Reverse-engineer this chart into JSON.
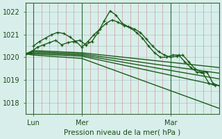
{
  "background_color": "#d8eeea",
  "grid_color_v": "#cc8888",
  "grid_color_h": "#aacccc",
  "line_color": "#1a5c1a",
  "ylabel": "Pression niveau de la mer( hPa )",
  "xlim": [
    0,
    96
  ],
  "ylim": [
    1017.5,
    1022.4
  ],
  "yticks": [
    1018,
    1019,
    1020,
    1021,
    1022
  ],
  "xtick_labels": [
    "Lun",
    "Mer",
    "Mar"
  ],
  "xtick_positions": [
    4,
    28,
    72
  ],
  "vlines": [
    4,
    28,
    72
  ],
  "series": [
    {
      "x": [
        0,
        3,
        6,
        9,
        12,
        15,
        18,
        21,
        24,
        27,
        30,
        33,
        36,
        39,
        42,
        45,
        48,
        51,
        54,
        57,
        60,
        63,
        66,
        69,
        72,
        75,
        78,
        81,
        84,
        87,
        90,
        93,
        96
      ],
      "y": [
        1020.15,
        1020.25,
        1020.45,
        1020.55,
        1020.65,
        1020.75,
        1020.55,
        1020.65,
        1020.7,
        1020.75,
        1020.55,
        1020.7,
        1021.1,
        1021.6,
        1022.05,
        1021.85,
        1021.5,
        1021.35,
        1021.25,
        1021.1,
        1020.8,
        1020.5,
        1020.25,
        1020.1,
        1020.0,
        1020.05,
        1020.1,
        1019.8,
        1019.5,
        1019.35,
        1019.35,
        1018.85,
        1018.75
      ],
      "marker": true,
      "linewidth": 1.0
    },
    {
      "x": [
        4,
        7,
        10,
        13,
        16,
        19,
        22,
        25,
        28,
        31,
        34,
        37,
        40,
        43,
        46,
        49,
        52,
        55,
        58,
        61,
        64,
        67,
        70,
        73,
        76,
        79,
        82,
        85,
        88,
        91,
        94
      ],
      "y": [
        1020.5,
        1020.7,
        1020.85,
        1021.0,
        1021.1,
        1021.05,
        1020.9,
        1020.7,
        1020.45,
        1020.7,
        1021.0,
        1021.25,
        1021.5,
        1021.65,
        1021.55,
        1021.4,
        1021.3,
        1021.1,
        1020.85,
        1020.5,
        1020.2,
        1020.0,
        1020.0,
        1020.1,
        1020.1,
        1019.8,
        1019.55,
        1019.35,
        1019.3,
        1018.85,
        1018.75
      ],
      "marker": true,
      "linewidth": 1.0
    },
    {
      "x": [
        0,
        4,
        28,
        96
      ],
      "y": [
        1020.15,
        1020.3,
        1020.2,
        1019.55
      ],
      "marker": false,
      "linewidth": 1.0
    },
    {
      "x": [
        0,
        4,
        28,
        96
      ],
      "y": [
        1020.15,
        1020.25,
        1020.15,
        1019.3
      ],
      "marker": false,
      "linewidth": 1.0
    },
    {
      "x": [
        0,
        4,
        28,
        96
      ],
      "y": [
        1020.15,
        1020.2,
        1020.1,
        1019.05
      ],
      "marker": false,
      "linewidth": 1.0
    },
    {
      "x": [
        0,
        4,
        28,
        96
      ],
      "y": [
        1020.15,
        1020.15,
        1020.05,
        1018.75
      ],
      "marker": false,
      "linewidth": 1.0
    },
    {
      "x": [
        0,
        4,
        28,
        96
      ],
      "y": [
        1020.15,
        1020.1,
        1019.95,
        1017.75
      ],
      "marker": false,
      "linewidth": 1.0
    }
  ]
}
